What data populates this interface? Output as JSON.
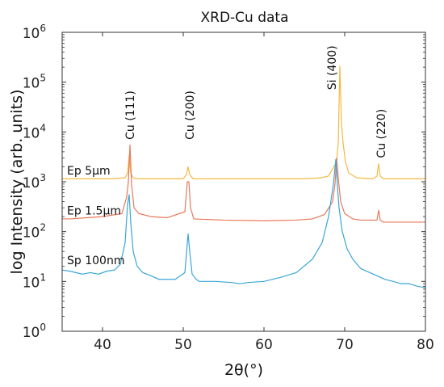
{
  "chart_data": {
    "type": "line",
    "title": "XRD-Cu data",
    "xlabel": "2θ(°)",
    "ylabel": "log Intensity (arb. units)",
    "xlim": [
      35,
      80
    ],
    "ylim": [
      1,
      1000000
    ],
    "yscale": "log",
    "x_ticks": [
      40,
      50,
      60,
      70,
      80
    ],
    "y_ticks": [
      {
        "value": 1,
        "label": "10",
        "exp": "0"
      },
      {
        "value": 10,
        "label": "10",
        "exp": "1"
      },
      {
        "value": 100,
        "label": "10",
        "exp": "2"
      },
      {
        "value": 1000,
        "label": "10",
        "exp": "3"
      },
      {
        "value": 10000,
        "label": "10",
        "exp": "4"
      },
      {
        "value": 100000,
        "label": "10",
        "exp": "5"
      },
      {
        "value": 1000000,
        "label": "10",
        "exp": "6"
      }
    ],
    "grid": false,
    "series": [
      {
        "name": "Ep 5µm",
        "color": "#f5b942",
        "x": [
          35,
          38,
          41,
          42.8,
          43.1,
          43.3,
          43.5,
          43.8,
          44.2,
          46,
          50,
          50.4,
          50.6,
          50.8,
          51.2,
          55,
          60,
          65,
          67,
          68,
          68.5,
          69.0,
          69.2,
          69.4,
          69.6,
          69.8,
          70.1,
          70.5,
          71.5,
          73.5,
          74.0,
          74.2,
          74.4,
          74.8,
          77,
          80
        ],
        "y": [
          1150,
          1150,
          1150,
          1200,
          1500,
          3300,
          1500,
          1200,
          1150,
          1150,
          1150,
          1400,
          2000,
          1400,
          1150,
          1150,
          1150,
          1150,
          1200,
          1300,
          1800,
          2500,
          6000,
          210000,
          15000,
          6000,
          2500,
          1500,
          1200,
          1150,
          1300,
          2300,
          1300,
          1150,
          1150,
          1150
        ]
      },
      {
        "name": "Ep 1.5µm",
        "color": "#e8795a",
        "x": [
          35,
          36,
          38,
          40,
          42.4,
          43.0,
          43.2,
          43.4,
          43.6,
          43.9,
          44.5,
          46,
          48,
          50.2,
          50.5,
          50.7,
          50.9,
          51.3,
          55,
          60,
          64,
          66,
          67.5,
          68.5,
          68.8,
          69.0,
          69.2,
          69.5,
          70,
          71,
          72,
          74.0,
          74.2,
          74.4,
          74.8,
          76,
          78,
          80
        ],
        "y": [
          180,
          180,
          190,
          200,
          230,
          500,
          1000,
          5500,
          900,
          300,
          230,
          200,
          190,
          250,
          1000,
          1000,
          300,
          180,
          170,
          165,
          170,
          180,
          220,
          400,
          900,
          3000,
          1200,
          400,
          230,
          180,
          170,
          170,
          270,
          170,
          155,
          155,
          155,
          155
        ]
      },
      {
        "name": "Sp 100nm",
        "color": "#3aa6d8",
        "x": [
          35,
          36,
          37.5,
          38.5,
          39.5,
          40.5,
          41.5,
          42.2,
          42.8,
          43.1,
          43.3,
          43.5,
          43.8,
          44.3,
          45,
          46,
          47,
          48,
          49,
          50.2,
          50.6,
          50.8,
          51.1,
          51.6,
          52,
          54,
          56,
          57,
          58,
          60,
          62,
          64,
          66,
          67.2,
          68.0,
          68.6,
          68.9,
          69.1,
          69.3,
          69.7,
          70.3,
          71,
          72,
          74,
          75,
          76,
          77,
          78,
          79,
          80
        ],
        "y": [
          17,
          16,
          14,
          15,
          14,
          16,
          17,
          22,
          60,
          350,
          550,
          150,
          40,
          20,
          15,
          13,
          11,
          11,
          11,
          15,
          90,
          40,
          14,
          11,
          10,
          10,
          9.5,
          9,
          9.5,
          10,
          12,
          15,
          28,
          60,
          200,
          900,
          2800,
          800,
          300,
          100,
          45,
          28,
          18,
          13,
          11,
          10,
          9,
          9,
          8,
          7.5
        ]
      }
    ],
    "annotations": [
      {
        "text": "Cu (111)",
        "x": 43.4,
        "y": 7000,
        "rotate": true
      },
      {
        "text": "Cu (200)",
        "x": 50.8,
        "y": 7000,
        "rotate": true
      },
      {
        "text": "Si (400)",
        "x": 68.4,
        "y": 70000,
        "rotate": true
      },
      {
        "text": "Cu (220)",
        "x": 74.5,
        "y": 3000,
        "rotate": true
      },
      {
        "text": "Ep 5µm",
        "x": 35.6,
        "y": 1400,
        "rotate": false
      },
      {
        "text": "Ep 1.5µm",
        "x": 35.6,
        "y": 220,
        "rotate": false
      },
      {
        "text": "Sp 100nm",
        "x": 35.6,
        "y": 22,
        "rotate": false
      }
    ]
  }
}
